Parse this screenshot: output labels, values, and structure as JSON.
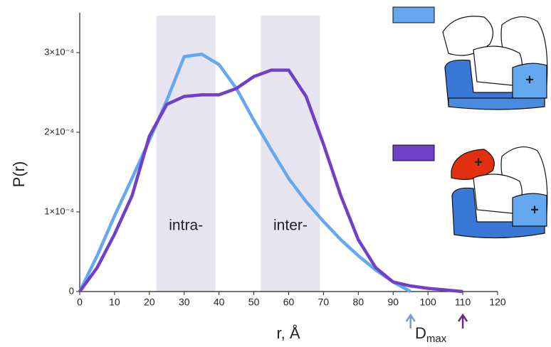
{
  "chart_data": {
    "type": "line",
    "xlabel": "r, Å",
    "ylabel": "P(r)",
    "x": [
      0,
      5,
      10,
      15,
      20,
      25,
      30,
      35,
      40,
      45,
      50,
      55,
      60,
      65,
      70,
      75,
      80,
      85,
      90,
      95,
      100,
      105,
      110
    ],
    "series": [
      {
        "color": "#64a8f0",
        "values": [
          0,
          4.5e-05,
          9.5e-05,
          0.000142,
          0.00019,
          0.00024,
          0.000295,
          0.000298,
          0.000285,
          0.000255,
          0.000215,
          0.000178,
          0.000142,
          0.000113,
          8.8e-05,
          6.5e-05,
          4.5e-05,
          2.7e-05,
          1.2e-05,
          0,
          null,
          null,
          null
        ]
      },
      {
        "color": "#7040c8",
        "values": [
          0,
          3e-05,
          7.2e-05,
          0.00012,
          0.000195,
          0.000235,
          0.000245,
          0.000247,
          0.000247,
          0.000255,
          0.00027,
          0.000278,
          0.000278,
          0.000245,
          0.000185,
          0.00012,
          6.5e-05,
          3e-05,
          1.2e-05,
          7e-06,
          4e-06,
          2e-06,
          0
        ]
      }
    ],
    "xlim": [
      0,
      120
    ],
    "ylim": [
      0,
      0.00035
    ],
    "xticks": [
      0,
      10,
      20,
      30,
      40,
      50,
      60,
      70,
      80,
      90,
      100,
      110,
      120
    ],
    "yticks": [
      0,
      {
        "value": 0.0001,
        "label": "1×10⁻⁴"
      },
      {
        "value": 0.0002,
        "label": "2×10⁻⁴"
      },
      {
        "value": 0.0003,
        "label": "3×10⁻⁴"
      }
    ],
    "regions": [
      {
        "from": 22,
        "to": 39,
        "label": "intra-"
      },
      {
        "from": 52,
        "to": 69,
        "label": "inter-"
      }
    ],
    "dmax": {
      "label": "D",
      "subscript": "max",
      "markers": [
        {
          "x": 95,
          "color": "#7a9ccc"
        },
        {
          "x": 110,
          "color": "#6a2a8a"
        }
      ]
    },
    "cartoon_marks": [
      "+",
      "+",
      "+"
    ]
  }
}
